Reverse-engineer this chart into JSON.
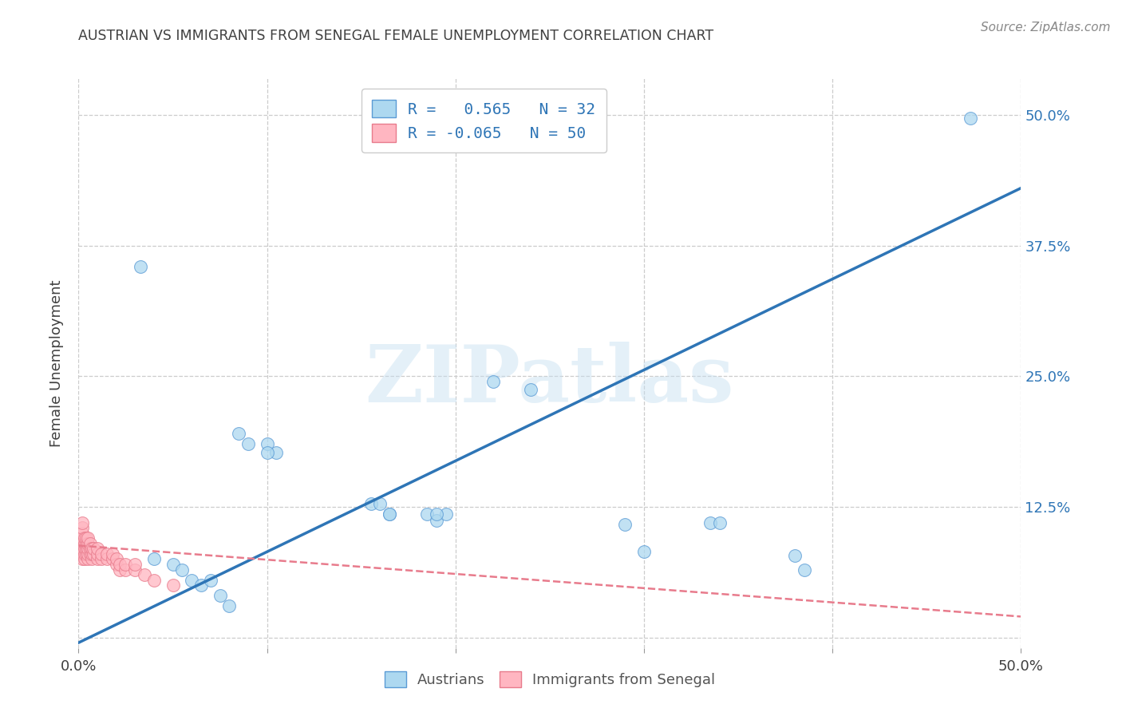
{
  "title": "AUSTRIAN VS IMMIGRANTS FROM SENEGAL FEMALE UNEMPLOYMENT CORRELATION CHART",
  "source": "Source: ZipAtlas.com",
  "ylabel": "Female Unemployment",
  "xlim": [
    0.0,
    0.5
  ],
  "ylim": [
    -0.01,
    0.535
  ],
  "yticks": [
    0.0,
    0.125,
    0.25,
    0.375,
    0.5
  ],
  "ytick_labels": [
    "",
    "12.5%",
    "25.0%",
    "37.5%",
    "50.0%"
  ],
  "blue_R": 0.565,
  "blue_N": 32,
  "pink_R": -0.065,
  "pink_N": 50,
  "blue_color": "#ADD8F0",
  "blue_edge_color": "#5B9BD5",
  "blue_line_color": "#2E75B6",
  "pink_color": "#FFB6C1",
  "pink_edge_color": "#E87B8C",
  "pink_line_color": "#E87B8C",
  "blue_scatter_x": [
    0.27,
    0.473,
    0.033,
    0.22,
    0.24,
    0.085,
    0.09,
    0.1,
    0.105,
    0.1,
    0.155,
    0.16,
    0.165,
    0.165,
    0.185,
    0.19,
    0.195,
    0.19,
    0.29,
    0.3,
    0.335,
    0.34,
    0.38,
    0.385,
    0.04,
    0.05,
    0.055,
    0.06,
    0.065,
    0.07,
    0.075,
    0.08
  ],
  "blue_scatter_y": [
    0.497,
    0.497,
    0.355,
    0.245,
    0.237,
    0.195,
    0.185,
    0.185,
    0.177,
    0.177,
    0.128,
    0.128,
    0.118,
    0.118,
    0.118,
    0.112,
    0.118,
    0.118,
    0.108,
    0.082,
    0.11,
    0.11,
    0.078,
    0.065,
    0.075,
    0.07,
    0.065,
    0.055,
    0.05,
    0.055,
    0.04,
    0.03
  ],
  "pink_scatter_x": [
    0.002,
    0.002,
    0.002,
    0.002,
    0.002,
    0.002,
    0.002,
    0.002,
    0.003,
    0.003,
    0.003,
    0.003,
    0.003,
    0.004,
    0.004,
    0.004,
    0.004,
    0.005,
    0.005,
    0.005,
    0.005,
    0.005,
    0.006,
    0.006,
    0.006,
    0.007,
    0.007,
    0.007,
    0.008,
    0.008,
    0.01,
    0.01,
    0.01,
    0.012,
    0.012,
    0.015,
    0.015,
    0.018,
    0.018,
    0.02,
    0.02,
    0.022,
    0.022,
    0.025,
    0.025,
    0.03,
    0.03,
    0.035,
    0.04,
    0.05
  ],
  "pink_scatter_y": [
    0.075,
    0.08,
    0.085,
    0.09,
    0.095,
    0.1,
    0.105,
    0.11,
    0.075,
    0.08,
    0.085,
    0.09,
    0.095,
    0.08,
    0.085,
    0.09,
    0.095,
    0.075,
    0.08,
    0.085,
    0.09,
    0.095,
    0.08,
    0.085,
    0.09,
    0.075,
    0.08,
    0.085,
    0.08,
    0.085,
    0.075,
    0.08,
    0.085,
    0.075,
    0.08,
    0.075,
    0.08,
    0.075,
    0.08,
    0.07,
    0.075,
    0.065,
    0.07,
    0.065,
    0.07,
    0.065,
    0.07,
    0.06,
    0.055,
    0.05
  ],
  "blue_line_x0": 0.0,
  "blue_line_y0": -0.005,
  "blue_line_x1": 0.5,
  "blue_line_y1": 0.43,
  "pink_line_x0": 0.0,
  "pink_line_y0": 0.088,
  "pink_line_x1": 0.5,
  "pink_line_y1": 0.02,
  "watermark": "ZIPatlas",
  "bg_color": "#FFFFFF",
  "grid_color": "#CCCCCC",
  "title_color": "#404040",
  "axis_label_color": "#404040",
  "tick_label_color": "#2E75B6",
  "source_color": "#888888",
  "legend_label1": "R =   0.565   N = 32",
  "legend_label2": "R = -0.065   N = 50"
}
